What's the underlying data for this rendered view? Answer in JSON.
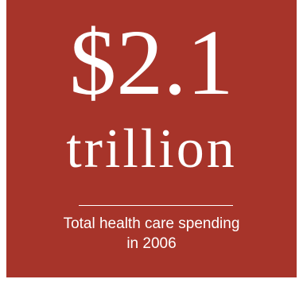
{
  "colors": {
    "card_background": "#a7342a",
    "text": "#ffffff"
  },
  "stat": {
    "amount": "$2.1",
    "unit": "trillion",
    "caption_line1": "Total health care spending",
    "caption_line2": "in 2006"
  }
}
